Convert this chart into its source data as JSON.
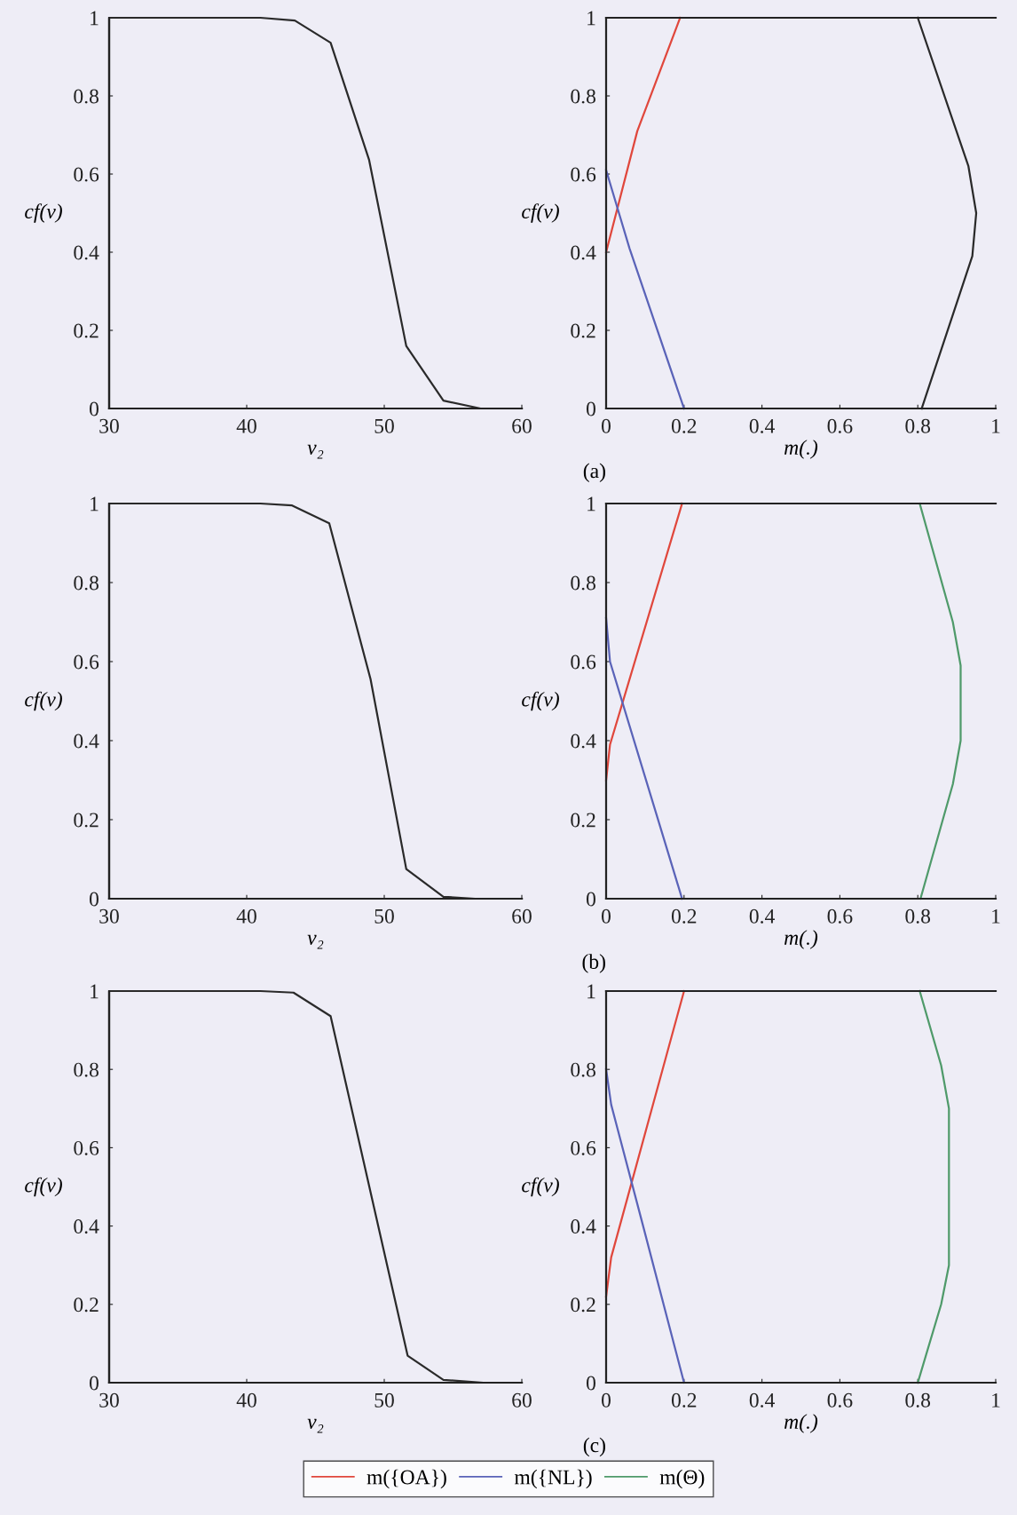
{
  "chart_data": [
    {
      "type": "line",
      "xlabel": "v₂",
      "ylabel": "cf(v)",
      "xlim": [
        30,
        60
      ],
      "ylim": [
        0,
        1
      ],
      "xticks": [
        30,
        40,
        50,
        60
      ],
      "yticks": [
        0,
        0.2,
        0.4,
        0.6,
        0.8,
        1
      ],
      "series": [
        {
          "color": "#2a2a2a",
          "x": [
            30,
            30,
            41,
            43.5,
            46.1,
            48.9,
            51.6,
            54.3,
            57,
            60
          ],
          "values": [
            0,
            1,
            1,
            0.993,
            0.936,
            0.636,
            0.16,
            0.02,
            0,
            0
          ]
        }
      ]
    },
    {
      "type": "line",
      "xlabel": "m(.)",
      "ylabel": "cf(v)",
      "xlim": [
        0,
        1
      ],
      "ylim": [
        0,
        1
      ],
      "xticks": [
        0,
        0.2,
        0.4,
        0.6,
        0.8,
        1
      ],
      "yticks": [
        0,
        0.2,
        0.4,
        0.6,
        0.8,
        1
      ],
      "annotations": [
        "(a)"
      ],
      "series": [
        {
          "color": "#e0473c",
          "x": [
            0,
            0.08,
            0.19
          ],
          "values": [
            0.4,
            0.71,
            1
          ]
        },
        {
          "color": "#5a63b8",
          "x": [
            0,
            0.06,
            0.2
          ],
          "values": [
            0.61,
            0.41,
            0
          ]
        },
        {
          "color": "#2a2a2a",
          "x": [
            0.8,
            0.93,
            0.95,
            0.94,
            0.81
          ],
          "values": [
            1,
            0.62,
            0.5,
            0.39,
            0
          ]
        }
      ]
    },
    {
      "type": "line",
      "xlabel": "v₂",
      "ylabel": "cf(v)",
      "xlim": [
        30,
        60
      ],
      "ylim": [
        0,
        1
      ],
      "xticks": [
        30,
        40,
        50,
        60
      ],
      "yticks": [
        0,
        0.2,
        0.4,
        0.6,
        0.8,
        1
      ],
      "series": [
        {
          "color": "#2a2a2a",
          "x": [
            30,
            30,
            41,
            43.3,
            46,
            49,
            51.6,
            54.3,
            56.6,
            60
          ],
          "values": [
            0,
            1,
            1,
            0.995,
            0.95,
            0.556,
            0.075,
            0.005,
            0,
            0
          ]
        }
      ]
    },
    {
      "type": "line",
      "xlabel": "m(.)",
      "ylabel": "cf(v)",
      "xlim": [
        0,
        1
      ],
      "ylim": [
        0,
        1
      ],
      "xticks": [
        0,
        0.2,
        0.4,
        0.6,
        0.8,
        1
      ],
      "yticks": [
        0,
        0.2,
        0.4,
        0.6,
        0.8,
        1
      ],
      "annotations": [
        "(b)"
      ],
      "series": [
        {
          "color": "#e0473c",
          "x": [
            0,
            0.01,
            0.195
          ],
          "values": [
            0.3,
            0.39,
            1
          ]
        },
        {
          "color": "#5a63b8",
          "x": [
            0,
            0.01,
            0.195
          ],
          "values": [
            0.71,
            0.6,
            0
          ]
        },
        {
          "color": "#4f9a6a",
          "x": [
            0.805,
            0.89,
            0.91,
            0.91,
            0.89,
            0.807
          ],
          "values": [
            1,
            0.7,
            0.59,
            0.4,
            0.29,
            0
          ]
        }
      ]
    },
    {
      "type": "line",
      "xlabel": "v₂",
      "ylabel": "cf(v)",
      "xlim": [
        30,
        60
      ],
      "ylim": [
        0,
        1
      ],
      "xticks": [
        30,
        40,
        50,
        60
      ],
      "yticks": [
        0,
        0.2,
        0.4,
        0.6,
        0.8,
        1
      ],
      "series": [
        {
          "color": "#2a2a2a",
          "x": [
            30,
            30,
            41,
            43.4,
            46.1,
            51.7,
            54.3,
            57.2,
            60
          ],
          "values": [
            0,
            1,
            1,
            0.996,
            0.936,
            0.069,
            0.007,
            0,
            0
          ]
        }
      ]
    },
    {
      "type": "line",
      "xlabel": "m(.)",
      "ylabel": "cf(v)",
      "xlim": [
        0,
        1
      ],
      "ylim": [
        0,
        1
      ],
      "xticks": [
        0,
        0.2,
        0.4,
        0.6,
        0.8,
        1
      ],
      "yticks": [
        0,
        0.2,
        0.4,
        0.6,
        0.8,
        1
      ],
      "annotations": [
        "(c)"
      ],
      "legend": "bottom",
      "series": [
        {
          "name": "m({OA})",
          "color": "#e0473c",
          "x": [
            0,
            0.013,
            0.2
          ],
          "values": [
            0.22,
            0.32,
            1
          ]
        },
        {
          "name": "m({NL})",
          "color": "#5a63b8",
          "x": [
            0,
            0.013,
            0.095,
            0.2
          ],
          "values": [
            0.8,
            0.71,
            0.4,
            0
          ]
        },
        {
          "name": "m(Θ)",
          "color": "#4f9a6a",
          "x": [
            0.805,
            0.86,
            0.88,
            0.88,
            0.86,
            0.8
          ],
          "values": [
            1,
            0.81,
            0.7,
            0.3,
            0.2,
            0
          ]
        }
      ]
    }
  ]
}
